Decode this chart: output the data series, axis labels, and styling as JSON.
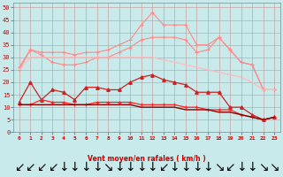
{
  "x": [
    0,
    1,
    2,
    3,
    4,
    5,
    6,
    7,
    8,
    9,
    10,
    11,
    12,
    13,
    14,
    15,
    16,
    17,
    18,
    19,
    20,
    21,
    22,
    23
  ],
  "line_rafales": [
    26,
    33,
    32,
    32,
    32,
    31,
    32,
    32,
    33,
    35,
    37,
    43,
    48,
    43,
    43,
    43,
    35,
    35,
    38,
    33,
    28,
    27,
    17,
    17
  ],
  "line_moy_high": [
    25,
    33,
    31,
    28,
    27,
    27,
    28,
    30,
    30,
    32,
    34,
    37,
    38,
    38,
    38,
    37,
    32,
    33,
    38,
    33,
    28,
    27,
    17,
    17
  ],
  "line_moy_flat": [
    25,
    30,
    30,
    30,
    30,
    30,
    30,
    30,
    30,
    30,
    30,
    30,
    30,
    29,
    28,
    27,
    26,
    25,
    24,
    23,
    22,
    20,
    17,
    17
  ],
  "line_wind2": [
    12,
    20,
    13,
    17,
    16,
    13,
    18,
    18,
    17,
    17,
    20,
    22,
    23,
    21,
    20,
    19,
    16,
    16,
    16,
    10,
    10,
    7,
    5,
    6
  ],
  "line_wind1": [
    11,
    11,
    13,
    12,
    12,
    11,
    11,
    12,
    12,
    12,
    12,
    11,
    11,
    11,
    11,
    10,
    10,
    9,
    9,
    9,
    7,
    6,
    5,
    6
  ],
  "line_flat": [
    11,
    11,
    11,
    11,
    11,
    11,
    11,
    11,
    11,
    11,
    11,
    10,
    10,
    10,
    10,
    9,
    9,
    9,
    8,
    8,
    7,
    6,
    5,
    6
  ],
  "color_rafales": "#ff8888",
  "color_moy_high": "#ffaaaa",
  "color_moy_flat": "#ffbbbb",
  "color_wind2": "#cc2222",
  "color_wind1": "#ff2222",
  "color_flat": "#880000",
  "bg_color": "#c8eaea",
  "grid_color": "#aacccc",
  "xlabel": "Vent moyen/en rafales ( km/h )",
  "ylim": [
    0,
    52
  ],
  "xlim": [
    -0.5,
    23.5
  ],
  "yticks": [
    0,
    5,
    10,
    15,
    20,
    25,
    30,
    35,
    40,
    45,
    50
  ],
  "xticks": [
    0,
    1,
    2,
    3,
    4,
    5,
    6,
    7,
    8,
    9,
    10,
    11,
    12,
    13,
    14,
    15,
    16,
    17,
    18,
    19,
    20,
    21,
    22,
    23
  ],
  "arrow_angles": [
    225,
    210,
    210,
    210,
    270,
    270,
    270,
    270,
    315,
    270,
    270,
    270,
    270,
    225,
    270,
    270,
    270,
    270,
    315,
    225,
    270,
    270,
    315,
    315
  ]
}
